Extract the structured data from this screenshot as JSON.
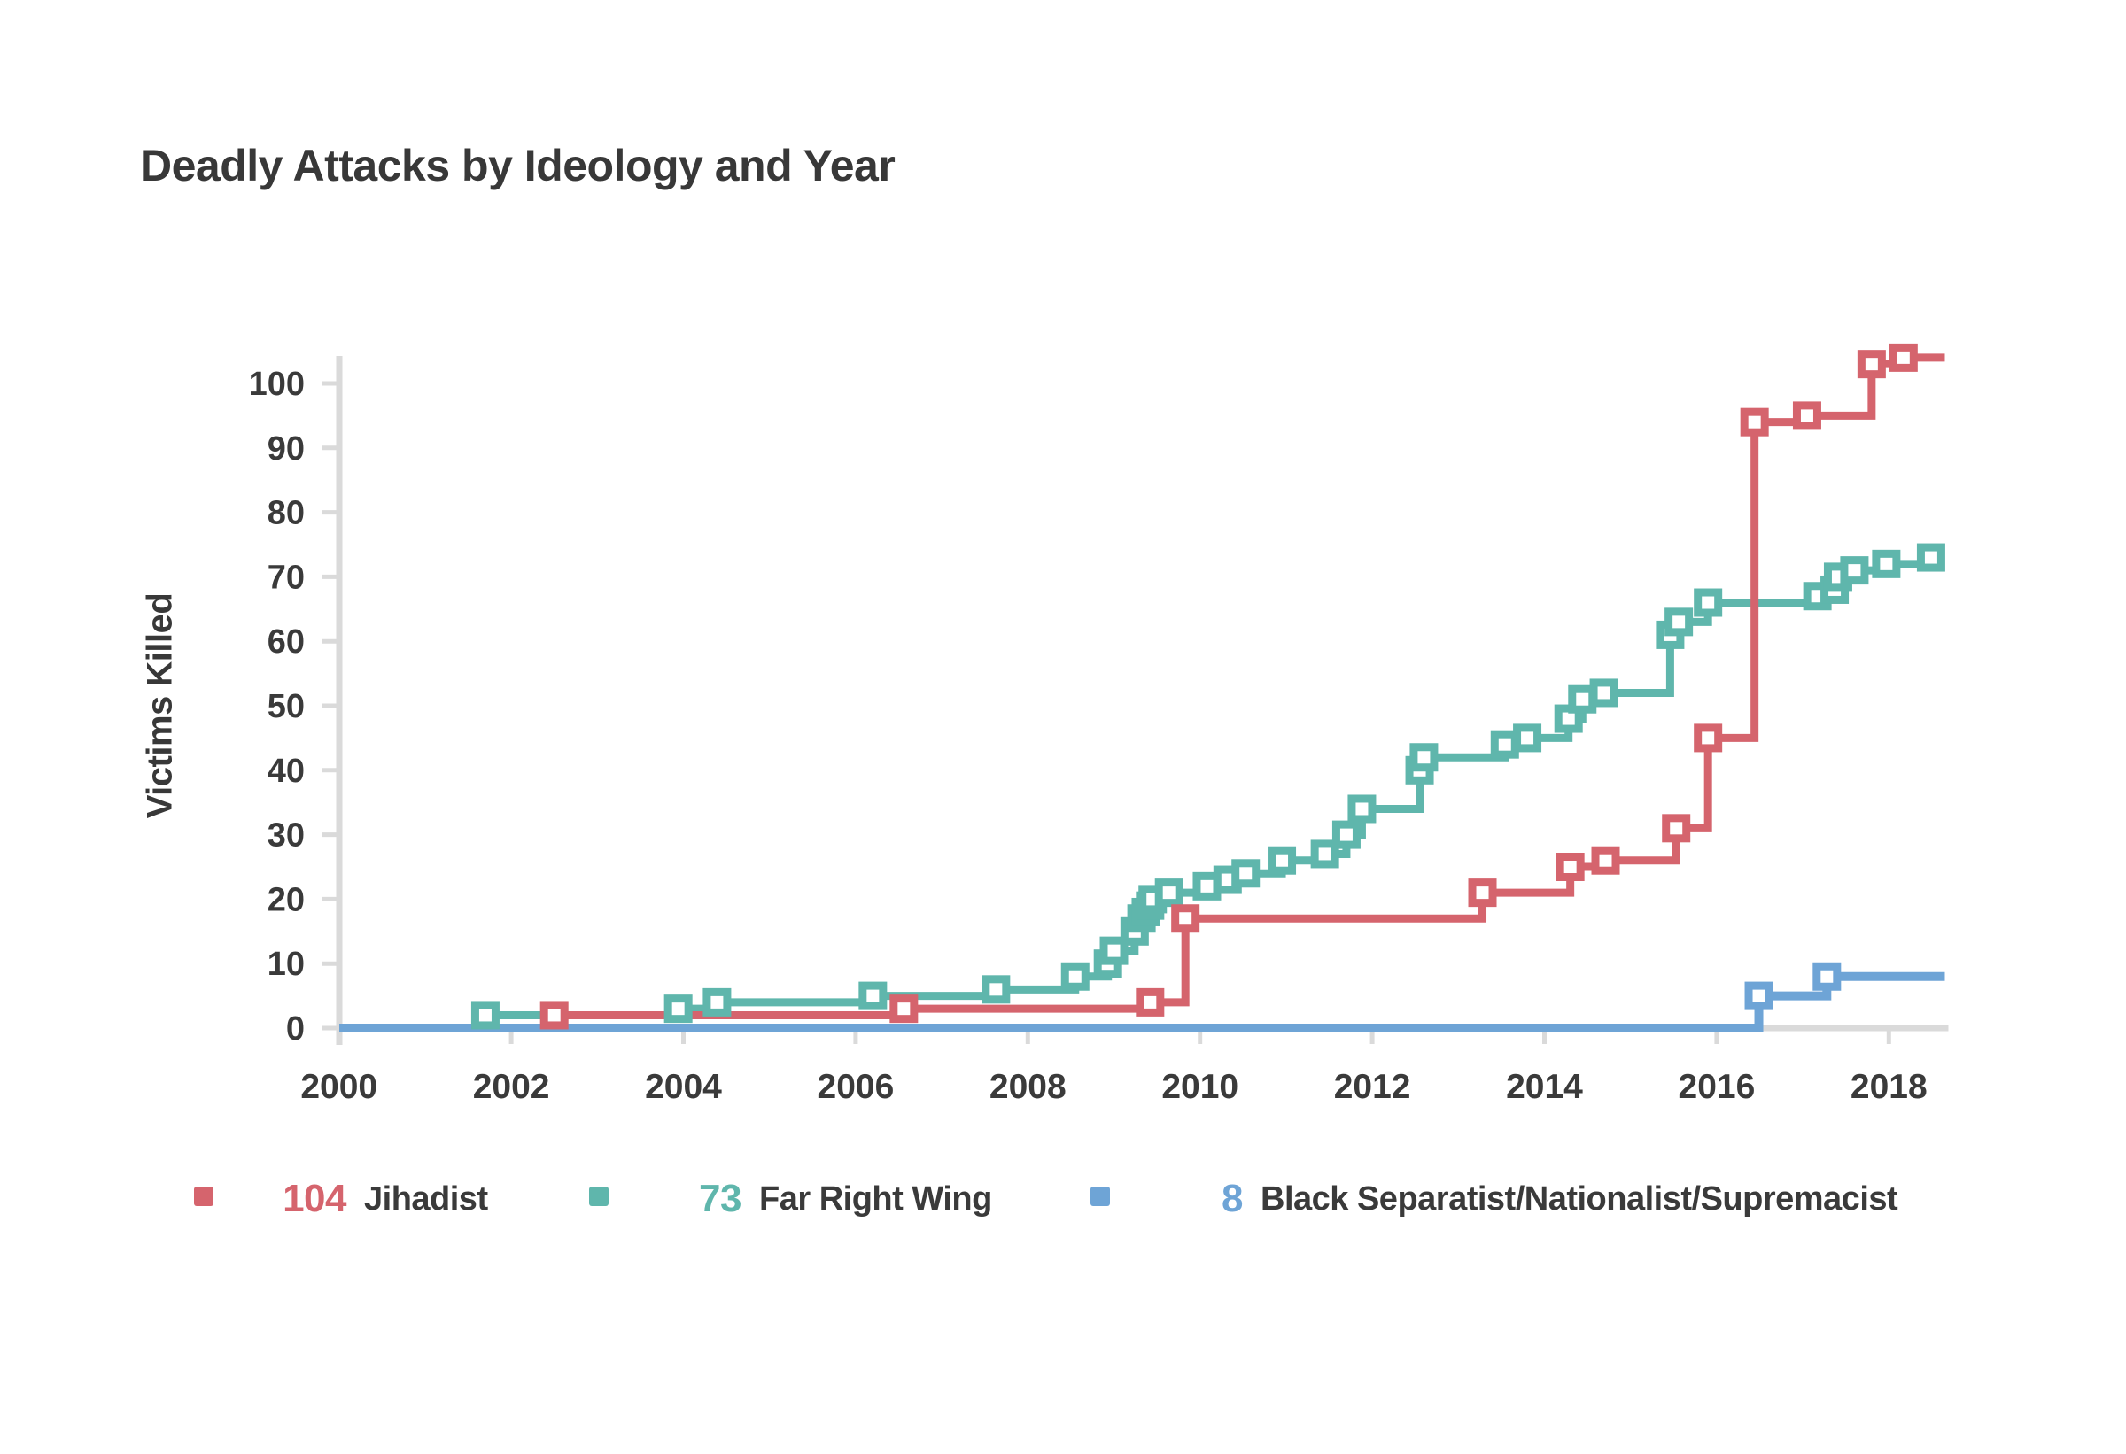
{
  "title": "Deadly Attacks by Ideology and Year",
  "y_axis": {
    "label": "Victims Killed"
  },
  "legend": [
    {
      "count": 104,
      "label": "Jihadist",
      "color": "#d5646d"
    },
    {
      "count": 73,
      "label": "Far Right Wing",
      "color": "#5fb6ac"
    },
    {
      "count": 8,
      "label": "Black Separatist/Nationalist/Supremacist",
      "color": "#6ea4d6"
    }
  ],
  "colors": {
    "jihadist": "#d5646d",
    "far_right_wing": "#5fb6ac",
    "black_separatist": "#6ea4d6",
    "axis": "#dadada",
    "text": "#3a3a3a"
  },
  "chart_data": {
    "type": "line",
    "step": "after",
    "title": "Deadly Attacks by Ideology and Year",
    "xlabel": "",
    "ylabel": "Victims Killed",
    "xlim": [
      2000,
      2018.8
    ],
    "ylim": [
      0,
      105
    ],
    "x_ticks": [
      2000,
      2002,
      2004,
      2006,
      2008,
      2010,
      2012,
      2014,
      2016,
      2018
    ],
    "y_ticks": [
      0,
      10,
      20,
      30,
      40,
      50,
      60,
      70,
      80,
      90,
      100
    ],
    "grid": false,
    "legend_position": "bottom",
    "marker": "square",
    "end_x": 2018.65,
    "series": [
      {
        "name": "Jihadist",
        "color": "#d5646d",
        "total": 104,
        "from_zero": false,
        "points": [
          [
            2002.5,
            2
          ],
          [
            2006.56,
            3
          ],
          [
            2009.42,
            4
          ],
          [
            2009.83,
            17
          ],
          [
            2013.28,
            21
          ],
          [
            2014.3,
            25
          ],
          [
            2014.71,
            26
          ],
          [
            2015.53,
            31
          ],
          [
            2015.9,
            45
          ],
          [
            2016.44,
            94
          ],
          [
            2017.05,
            95
          ],
          [
            2017.8,
            103
          ],
          [
            2018.17,
            104
          ]
        ]
      },
      {
        "name": "Far Right Wing",
        "color": "#5fb6ac",
        "total": 73,
        "from_zero": false,
        "points": [
          [
            2001.7,
            2
          ],
          [
            2003.94,
            3
          ],
          [
            2004.39,
            4
          ],
          [
            2006.2,
            5
          ],
          [
            2007.63,
            6
          ],
          [
            2008.55,
            8
          ],
          [
            2008.93,
            10
          ],
          [
            2009.0,
            12
          ],
          [
            2009.24,
            15
          ],
          [
            2009.32,
            17
          ],
          [
            2009.37,
            18
          ],
          [
            2009.42,
            19
          ],
          [
            2009.45,
            20
          ],
          [
            2009.64,
            21
          ],
          [
            2010.08,
            22
          ],
          [
            2010.32,
            23
          ],
          [
            2010.53,
            24
          ],
          [
            2010.95,
            26
          ],
          [
            2011.45,
            27
          ],
          [
            2011.7,
            30
          ],
          [
            2011.88,
            34
          ],
          [
            2012.55,
            40
          ],
          [
            2012.6,
            42
          ],
          [
            2013.54,
            44
          ],
          [
            2013.8,
            45
          ],
          [
            2014.28,
            48
          ],
          [
            2014.44,
            51
          ],
          [
            2014.69,
            52
          ],
          [
            2015.46,
            61
          ],
          [
            2015.56,
            63
          ],
          [
            2015.9,
            66
          ],
          [
            2017.17,
            67
          ],
          [
            2017.37,
            68
          ],
          [
            2017.41,
            70
          ],
          [
            2017.6,
            71
          ],
          [
            2017.97,
            72
          ],
          [
            2018.49,
            73
          ]
        ]
      },
      {
        "name": "Black Separatist/Nationalist/Supremacist",
        "color": "#6ea4d6",
        "total": 8,
        "from_zero": true,
        "points": [
          [
            2016.49,
            5
          ],
          [
            2017.28,
            8
          ]
        ]
      }
    ]
  }
}
